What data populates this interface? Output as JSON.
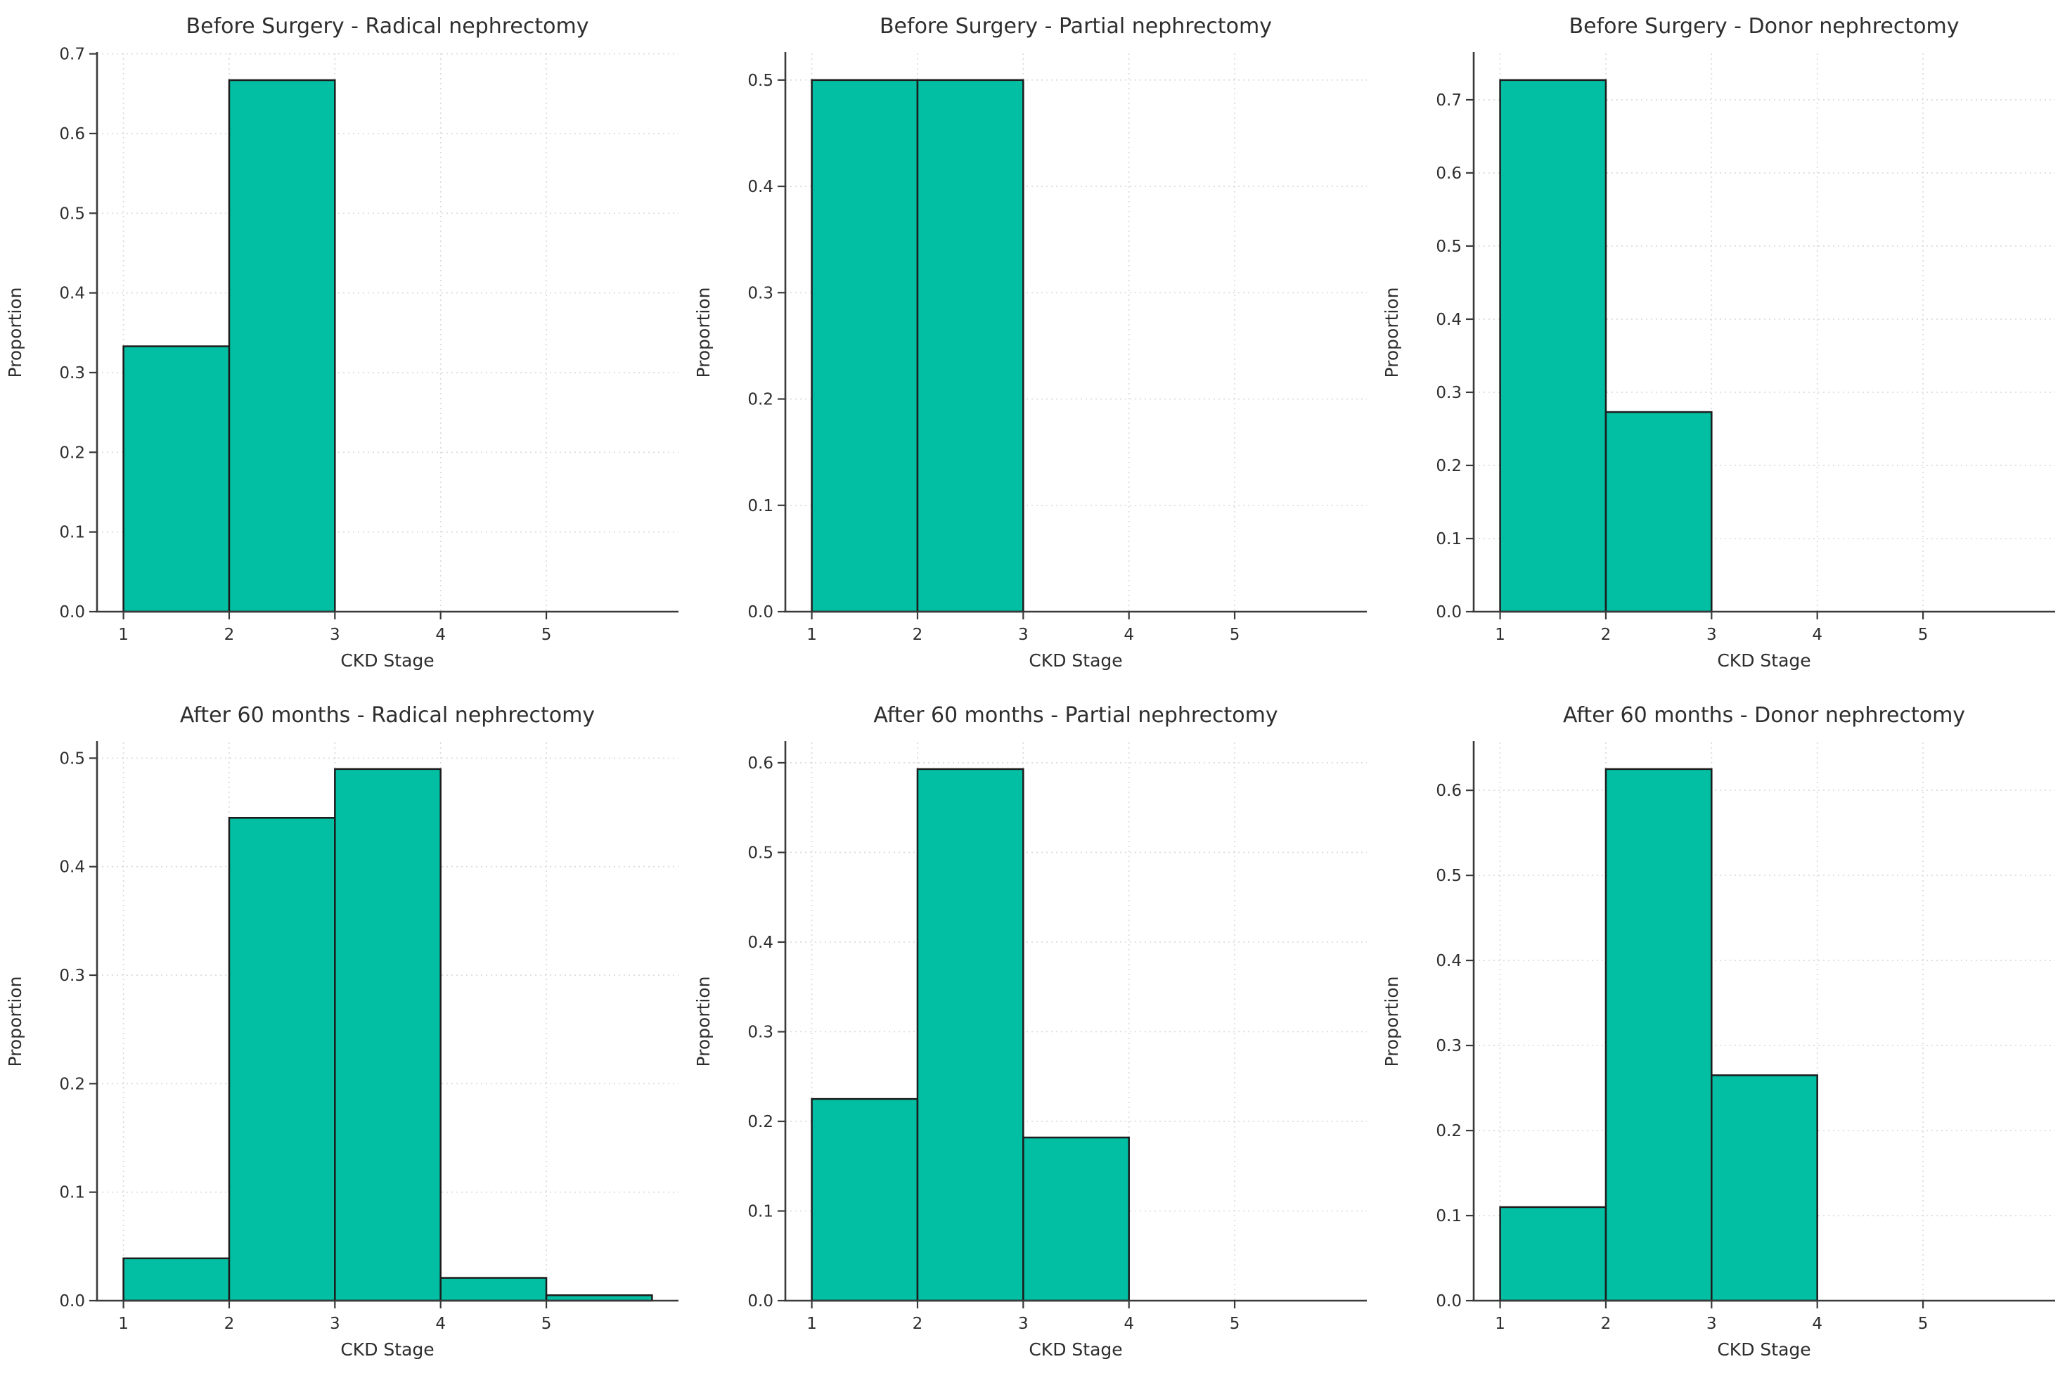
{
  "figure": {
    "bar_color": "#02bea2",
    "bar_edge_color": "#1c1c1c",
    "grid_color": "#d9d9d9",
    "spine_color": "#3a3a3a",
    "text_color": "#2e2e2e",
    "background_color": "#ffffff"
  },
  "chart_data": [
    {
      "type": "bar",
      "title": "Before Surgery - Radical nephrectomy",
      "xlabel": "CKD Stage",
      "ylabel": "Proportion",
      "bin_edges": [
        1,
        2,
        3
      ],
      "values": [
        0.333,
        0.667
      ],
      "xticks": [
        1,
        2,
        3,
        4,
        5
      ],
      "yticks": [
        0.0,
        0.1,
        0.2,
        0.3,
        0.4,
        0.5,
        0.6,
        0.7
      ],
      "xlim": [
        0.75,
        6.25
      ],
      "ylim": [
        0,
        0.7005
      ],
      "grid": true,
      "legend": false
    },
    {
      "type": "bar",
      "title": "Before Surgery - Partial nephrectomy",
      "xlabel": "CKD Stage",
      "ylabel": "Proportion",
      "bin_edges": [
        1,
        2,
        3
      ],
      "values": [
        0.5,
        0.5
      ],
      "xticks": [
        1,
        2,
        3,
        4,
        5
      ],
      "yticks": [
        0.0,
        0.1,
        0.2,
        0.3,
        0.4,
        0.5
      ],
      "xlim": [
        0.75,
        6.25
      ],
      "ylim": [
        0,
        0.525
      ],
      "grid": true,
      "legend": false
    },
    {
      "type": "bar",
      "title": "Before Surgery - Donor nephrectomy",
      "xlabel": "CKD Stage",
      "ylabel": "Proportion",
      "bin_edges": [
        1,
        2,
        3
      ],
      "values": [
        0.727,
        0.273
      ],
      "xticks": [
        1,
        2,
        3,
        4,
        5
      ],
      "yticks": [
        0.0,
        0.1,
        0.2,
        0.3,
        0.4,
        0.5,
        0.6,
        0.7
      ],
      "xlim": [
        0.75,
        6.25
      ],
      "ylim": [
        0,
        0.7634
      ],
      "grid": true,
      "legend": false
    },
    {
      "type": "bar",
      "title": "After 60 months - Radical nephrectomy",
      "xlabel": "CKD Stage",
      "ylabel": "Proportion",
      "bin_edges": [
        1,
        2,
        3,
        4,
        5,
        6
      ],
      "values": [
        0.039,
        0.445,
        0.49,
        0.021,
        0.005
      ],
      "xticks": [
        1,
        2,
        3,
        4,
        5
      ],
      "yticks": [
        0.0,
        0.1,
        0.2,
        0.3,
        0.4,
        0.5
      ],
      "xlim": [
        0.75,
        6.25
      ],
      "ylim": [
        0,
        0.5145
      ],
      "grid": true,
      "legend": false
    },
    {
      "type": "bar",
      "title": "After 60 months - Partial nephrectomy",
      "xlabel": "CKD Stage",
      "ylabel": "Proportion",
      "bin_edges": [
        1,
        2,
        3,
        4
      ],
      "values": [
        0.225,
        0.593,
        0.182
      ],
      "xticks": [
        1,
        2,
        3,
        4,
        5
      ],
      "yticks": [
        0.0,
        0.1,
        0.2,
        0.3,
        0.4,
        0.5,
        0.6
      ],
      "xlim": [
        0.75,
        6.25
      ],
      "ylim": [
        0,
        0.6227
      ],
      "grid": true,
      "legend": false
    },
    {
      "type": "bar",
      "title": "After 60 months - Donor nephrectomy",
      "xlabel": "CKD Stage",
      "ylabel": "Proportion",
      "bin_edges": [
        1,
        2,
        3,
        4
      ],
      "values": [
        0.11,
        0.625,
        0.265
      ],
      "xticks": [
        1,
        2,
        3,
        4,
        5
      ],
      "yticks": [
        0.0,
        0.1,
        0.2,
        0.3,
        0.4,
        0.5,
        0.6
      ],
      "xlim": [
        0.75,
        6.25
      ],
      "ylim": [
        0,
        0.6563
      ],
      "grid": true,
      "legend": false
    }
  ]
}
